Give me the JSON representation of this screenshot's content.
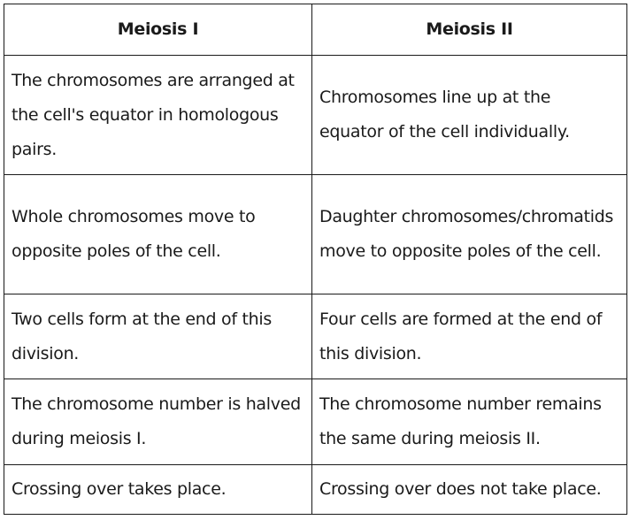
{
  "table": {
    "headers": [
      "Meiosis I",
      "Meiosis II"
    ],
    "rows": [
      [
        "The chromosomes are arranged at the cell's equator in homologous pairs.",
        "Chromosomes line up at the equator of the cell individually."
      ],
      [
        "Whole chromosomes move to opposite poles of the cell.",
        "Daughter chromosomes/chromatids move to opposite poles of the cell."
      ],
      [
        "Two cells form at the end of this division.",
        "Four cells are formed at the end of this division."
      ],
      [
        "The chromosome number is halved during meiosis I.",
        "The chromosome number remains the same during meiosis II."
      ],
      [
        "Crossing over takes place.",
        "Crossing over does not take place."
      ]
    ]
  }
}
